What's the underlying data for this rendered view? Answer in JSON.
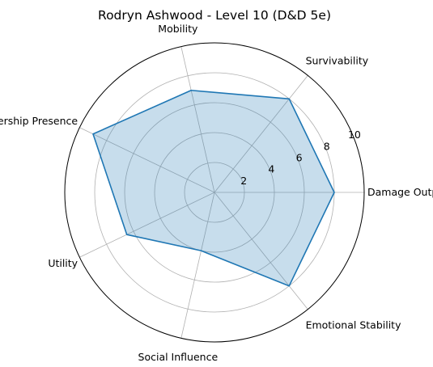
{
  "chart_data": {
    "type": "radar",
    "title": "Rodryn Ashwood - Level 10 (D&D 5e)",
    "categories": [
      "Damage Output",
      "Survivability",
      "Mobility",
      "Leadership Presence",
      "Utility",
      "Social Influence",
      "Emotional Stability"
    ],
    "series": [
      {
        "name": "",
        "values": [
          8,
          8,
          7,
          9,
          6.5,
          4,
          8
        ]
      }
    ],
    "rlim": [
      0,
      10
    ],
    "rticks": [
      2,
      4,
      6,
      8,
      10
    ],
    "grid": true,
    "colors": {
      "line": "#1f77b4",
      "fill": "#1f77b4",
      "grid": "#b0b0b0",
      "frame": "#000000"
    }
  }
}
